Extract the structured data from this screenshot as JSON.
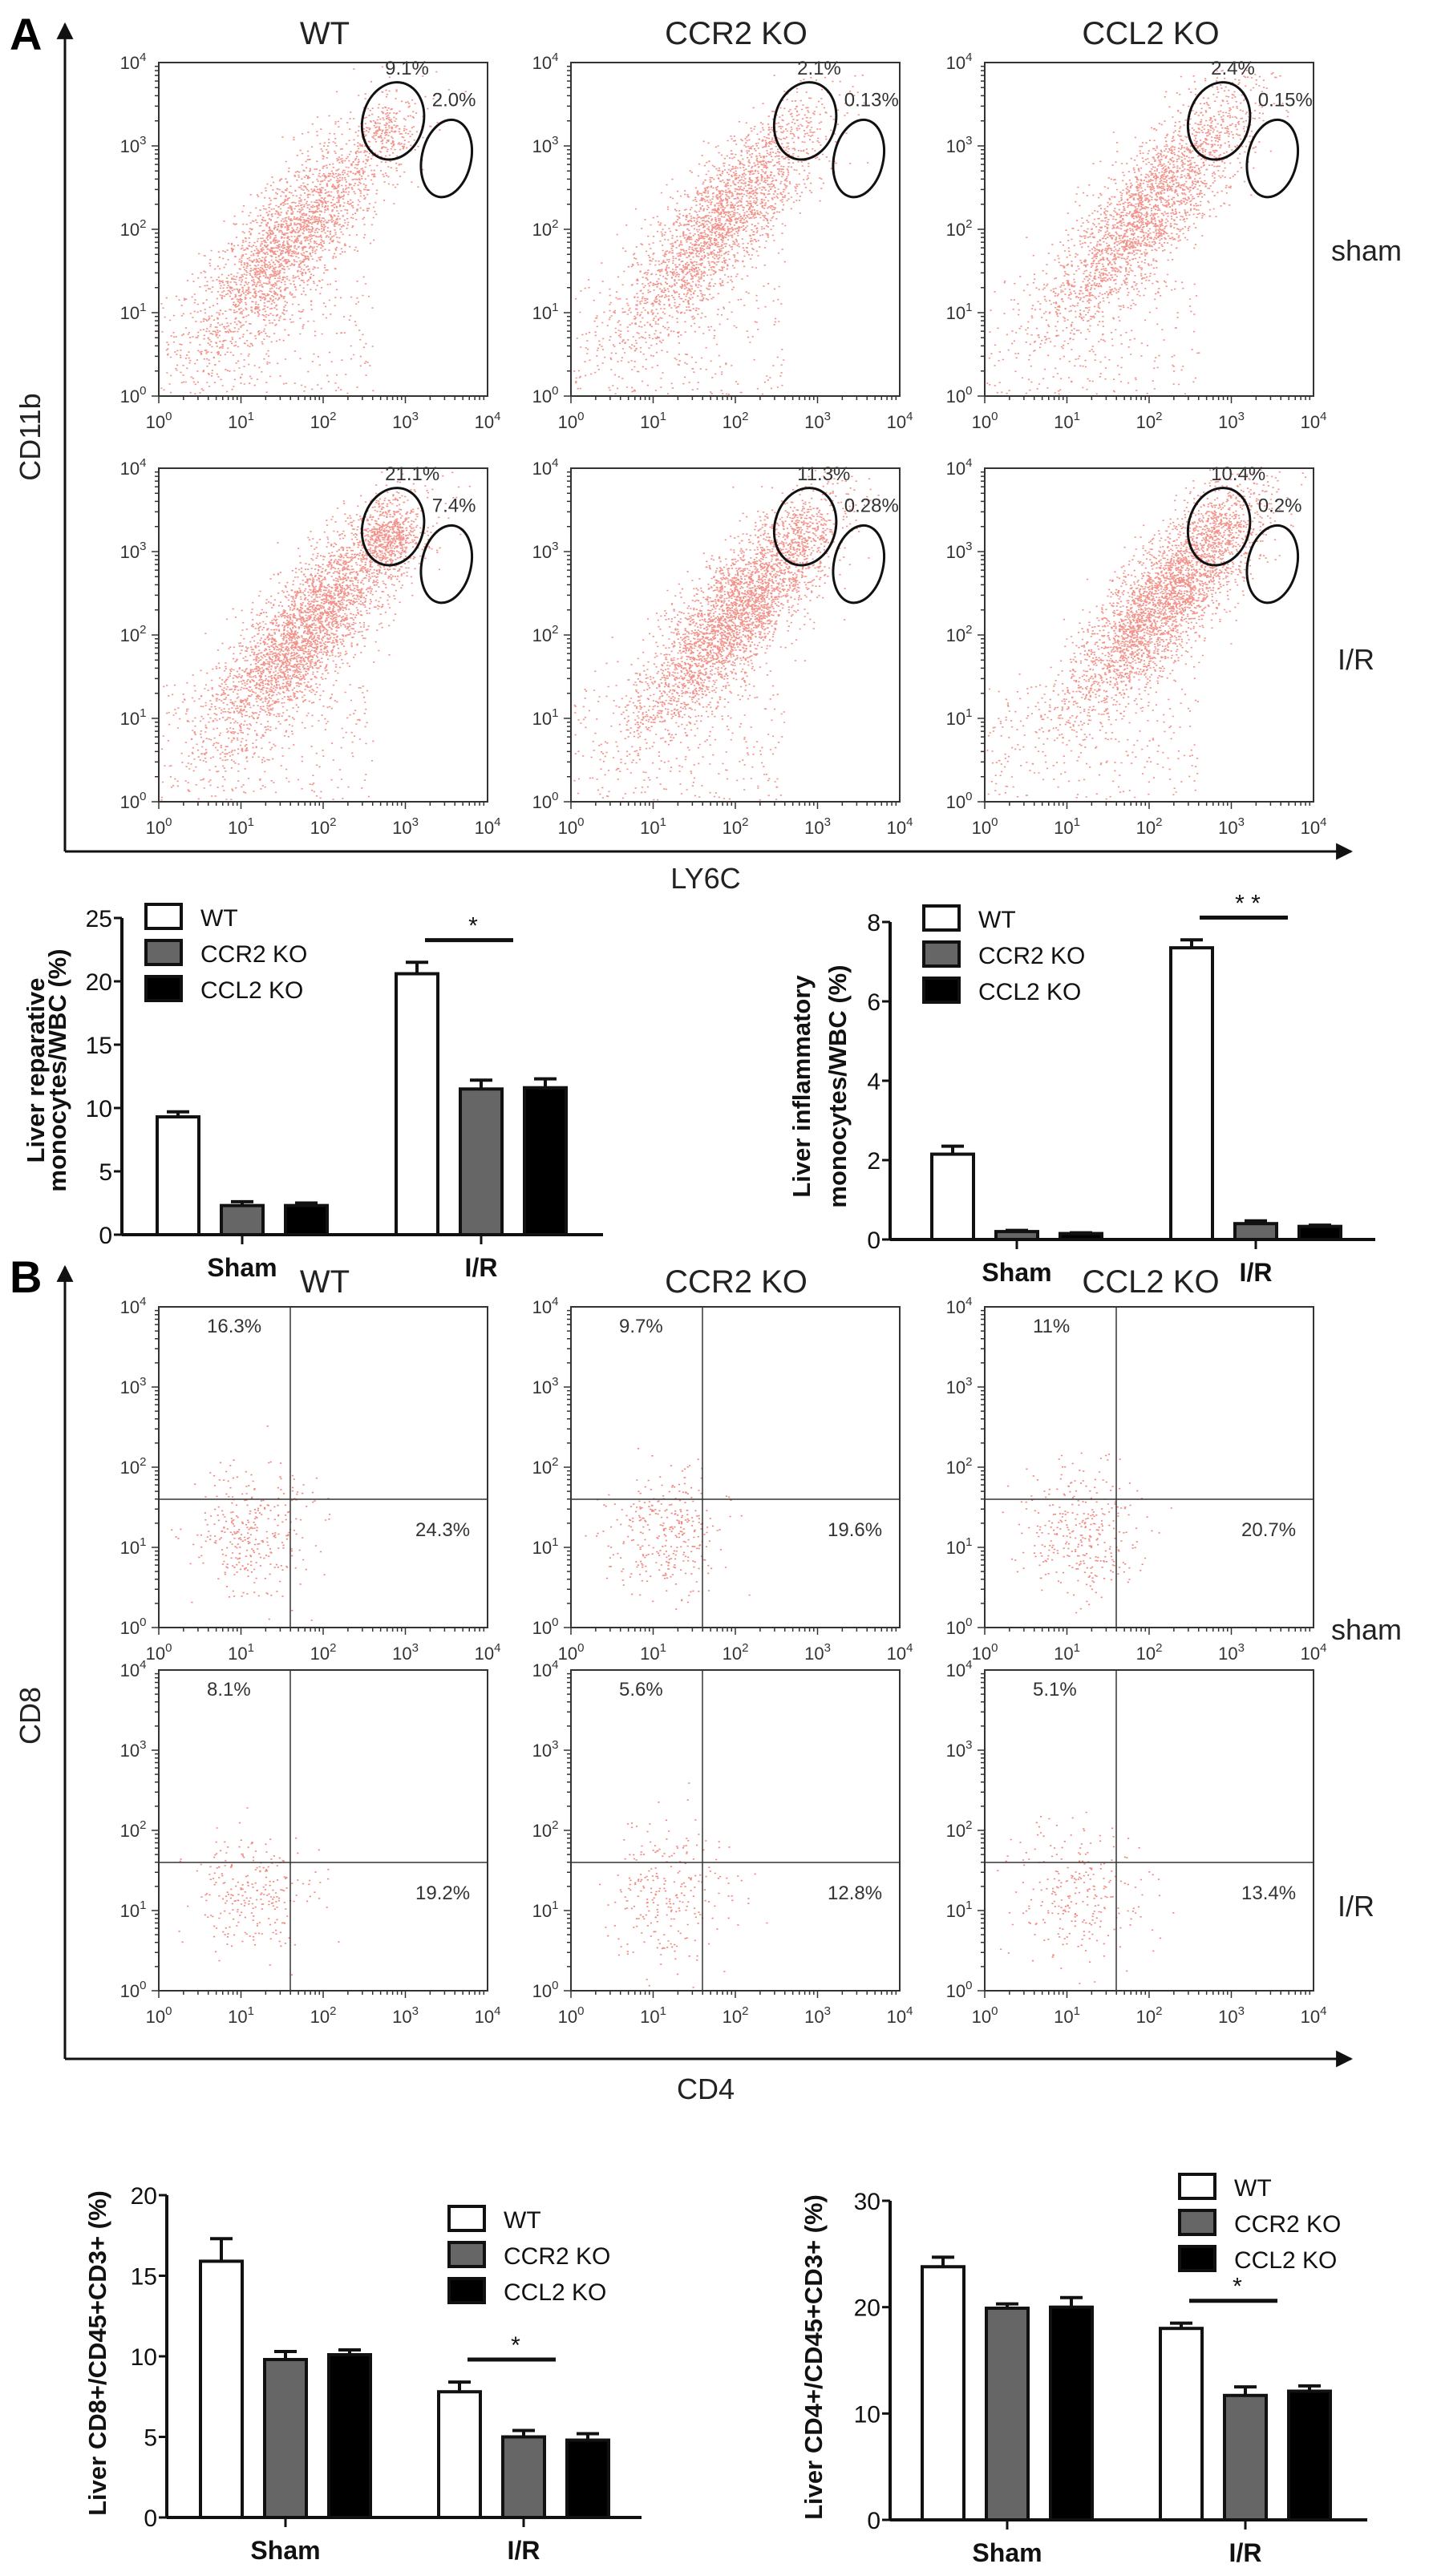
{
  "colors": {
    "dots": "#e53b2c",
    "gate": "#111111",
    "wt": "#ffffff",
    "ccr2": "#666666",
    "ccl2": "#000000",
    "axis": "#111111"
  },
  "flow_axis": {
    "base": "10",
    "exponents": [
      "0",
      "1",
      "2",
      "3",
      "4"
    ]
  },
  "panel_a": {
    "letter": "A",
    "columns": [
      "WT",
      "CCR2 KO",
      "CCL2 KO"
    ],
    "rows": [
      "sham",
      "I/R"
    ],
    "y_axis": "CD11b",
    "x_axis": "LY6C",
    "gates": [
      [
        [
          "9.1%",
          "2.0%"
        ],
        [
          "2.1%",
          "0.13%"
        ],
        [
          "2.4%",
          "0.15%"
        ]
      ],
      [
        [
          "21.1%",
          "7.4%"
        ],
        [
          "11.3%",
          "0.28%"
        ],
        [
          "10.4%",
          "0.2%"
        ]
      ]
    ]
  },
  "panel_b": {
    "letter": "B",
    "columns": [
      "WT",
      "CCR2 KO",
      "CCL2 KO"
    ],
    "rows": [
      "sham",
      "I/R"
    ],
    "y_axis": "CD8",
    "x_axis": "CD4",
    "quadrants": [
      [
        [
          "16.3%",
          "24.3%"
        ],
        [
          "9.7%",
          "19.6%"
        ],
        [
          "11%",
          "20.7%"
        ]
      ],
      [
        [
          "8.1%",
          "19.2%"
        ],
        [
          "5.6%",
          "12.8%"
        ],
        [
          "5.1%",
          "13.4%"
        ]
      ]
    ]
  },
  "chart_data": [
    {
      "type": "bar",
      "ylabel": [
        "Liver reparative",
        "monocytes/WBC (%)"
      ],
      "categories": [
        "Sham",
        "I/R"
      ],
      "ylim": [
        0,
        25
      ],
      "yticks": [
        0,
        5,
        10,
        15,
        20,
        25
      ],
      "legend": "top-left",
      "series": [
        {
          "name": "WT",
          "values": [
            9.3,
            20.6
          ],
          "errors": [
            0.4,
            0.9
          ]
        },
        {
          "name": "CCR2 KO",
          "values": [
            2.3,
            11.5
          ],
          "errors": [
            0.3,
            0.7
          ]
        },
        {
          "name": "CCL2 KO",
          "values": [
            2.3,
            11.6
          ],
          "errors": [
            0.2,
            0.7
          ]
        }
      ],
      "significance": [
        {
          "category": "I/R",
          "label": "*"
        }
      ]
    },
    {
      "type": "bar",
      "ylabel": [
        "Liver inflammatory",
        "monocytes/WBC (%)"
      ],
      "categories": [
        "Sham",
        "I/R"
      ],
      "ylim": [
        0,
        8
      ],
      "yticks": [
        0,
        2,
        4,
        6,
        8
      ],
      "legend": "top-left",
      "series": [
        {
          "name": "WT",
          "values": [
            2.15,
            7.35
          ],
          "errors": [
            0.2,
            0.2
          ]
        },
        {
          "name": "CCR2 KO",
          "values": [
            0.2,
            0.4
          ],
          "errors": [
            0.03,
            0.07
          ]
        },
        {
          "name": "CCL2 KO",
          "values": [
            0.15,
            0.33
          ],
          "errors": [
            0.02,
            0.03
          ]
        }
      ],
      "significance": [
        {
          "category": "I/R",
          "label": "* *"
        }
      ]
    },
    {
      "type": "bar",
      "ylabel": [
        "Liver CD8+/CD45+CD3+ (%)"
      ],
      "categories": [
        "Sham",
        "I/R"
      ],
      "ylim": [
        0,
        20
      ],
      "yticks": [
        0,
        5,
        10,
        15,
        20
      ],
      "legend": "top-right",
      "series": [
        {
          "name": "WT",
          "values": [
            15.9,
            7.8
          ],
          "errors": [
            1.4,
            0.6
          ]
        },
        {
          "name": "CCR2 KO",
          "values": [
            9.8,
            5.0
          ],
          "errors": [
            0.5,
            0.4
          ]
        },
        {
          "name": "CCL2 KO",
          "values": [
            10.1,
            4.8
          ],
          "errors": [
            0.3,
            0.4
          ]
        }
      ],
      "significance": [
        {
          "category": "I/R",
          "label": "*"
        }
      ]
    },
    {
      "type": "bar",
      "ylabel": [
        "Liver CD4+/CD45+CD3+ (%)"
      ],
      "categories": [
        "Sham",
        "I/R"
      ],
      "ylim": [
        0,
        30
      ],
      "yticks": [
        0,
        10,
        20,
        30
      ],
      "legend": "top-right",
      "series": [
        {
          "name": "WT",
          "values": [
            23.8,
            18.0
          ],
          "errors": [
            0.9,
            0.5
          ]
        },
        {
          "name": "CCR2 KO",
          "values": [
            19.9,
            11.7
          ],
          "errors": [
            0.4,
            0.8
          ]
        },
        {
          "name": "CCL2 KO",
          "values": [
            20.0,
            12.1
          ],
          "errors": [
            0.9,
            0.5
          ]
        }
      ],
      "significance": [
        {
          "category": "I/R",
          "label": "*"
        }
      ]
    }
  ]
}
